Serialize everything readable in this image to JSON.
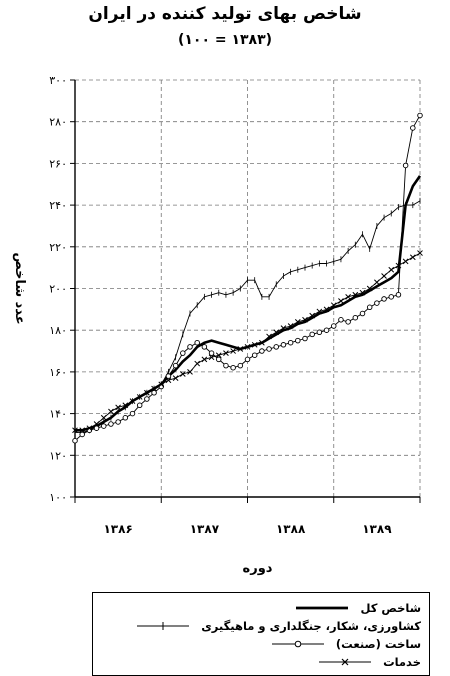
{
  "chart_data": {
    "type": "line",
    "title": "شاخص بهای تولید کننده در ایران",
    "subtitle": "(۱۰۰ = ۱۳۸۳)",
    "xlabel": "دوره",
    "ylabel": "عدد شاخص",
    "ylim": [
      100,
      300
    ],
    "y_ticks": [
      100,
      120,
      140,
      160,
      180,
      200,
      220,
      240,
      260,
      280,
      300
    ],
    "y_tick_labels": [
      "۱۰۰",
      "۱۲۰",
      "۱۴۰",
      "۱۶۰",
      "۱۸۰",
      "۲۰۰",
      "۲۲۰",
      "۲۴۰",
      "۲۶۰",
      "۲۸۰",
      "۳۰۰"
    ],
    "x_range": [
      0,
      48
    ],
    "x_tick_positions": [
      0,
      12,
      24,
      36,
      48
    ],
    "x_category_labels": [
      "۱۳۸۶",
      "۱۳۸۷",
      "۱۳۸۸",
      "۱۳۸۹"
    ],
    "grid": true,
    "legend_position": "bottom",
    "series": [
      {
        "name": "شاخص کل",
        "style": "thick",
        "color": "#000000",
        "x": [
          0,
          1,
          2,
          3,
          4,
          5,
          6,
          7,
          8,
          9,
          10,
          11,
          12,
          13,
          14,
          15,
          16,
          17,
          18,
          19,
          20,
          21,
          22,
          23,
          24,
          25,
          26,
          27,
          28,
          29,
          30,
          31,
          32,
          33,
          34,
          35,
          36,
          37,
          38,
          39,
          40,
          41,
          42,
          43,
          44,
          45,
          46,
          47,
          48
        ],
        "y": [
          132,
          132,
          133,
          134,
          136,
          138,
          141,
          143,
          146,
          148,
          150,
          152,
          154,
          158,
          161,
          165,
          168,
          172,
          174,
          175,
          174,
          173,
          172,
          171,
          172,
          173,
          174,
          176,
          178,
          180,
          181,
          183,
          184,
          186,
          188,
          189,
          191,
          192,
          194,
          196,
          197,
          199,
          201,
          203,
          205,
          208,
          240,
          249,
          254
        ]
      },
      {
        "name": "کشاورزی، شکار، جنگلداری و ماهیگیری",
        "style": "thin",
        "color": "#000000",
        "x": [
          0,
          1,
          2,
          3,
          4,
          5,
          6,
          7,
          8,
          9,
          10,
          11,
          12,
          13,
          14,
          15,
          16,
          17,
          18,
          19,
          20,
          21,
          22,
          23,
          24,
          25,
          26,
          27,
          28,
          29,
          30,
          31,
          32,
          33,
          34,
          35,
          36,
          37,
          38,
          39,
          40,
          41,
          42,
          43,
          44,
          45,
          46,
          47,
          48
        ],
        "y": [
          131,
          131,
          132,
          134,
          136,
          138,
          141,
          143,
          146,
          148,
          150,
          152,
          154,
          160,
          167,
          178,
          188,
          192,
          196,
          197,
          198,
          197,
          198,
          200,
          204,
          204,
          196,
          196,
          202,
          206,
          208,
          209,
          210,
          211,
          212,
          212,
          213,
          214,
          218,
          221,
          226,
          219,
          230,
          234,
          236,
          239,
          240,
          240,
          242
        ]
      },
      {
        "name": "ساخت (صنعت)",
        "style": "circle",
        "color": "#000000",
        "x": [
          0,
          1,
          2,
          3,
          4,
          5,
          6,
          7,
          8,
          9,
          10,
          11,
          12,
          13,
          14,
          15,
          16,
          17,
          18,
          19,
          20,
          21,
          22,
          23,
          24,
          25,
          26,
          27,
          28,
          29,
          30,
          31,
          32,
          33,
          34,
          35,
          36,
          37,
          38,
          39,
          40,
          41,
          42,
          43,
          44,
          45,
          46,
          47,
          48
        ],
        "y": [
          127,
          130,
          132,
          133,
          134,
          135,
          136,
          138,
          140,
          144,
          147,
          150,
          153,
          158,
          163,
          169,
          172,
          174,
          172,
          169,
          166,
          163,
          162,
          163,
          166,
          168,
          170,
          171,
          172,
          173,
          174,
          175,
          176,
          178,
          179,
          180,
          182,
          185,
          184,
          186,
          188,
          191,
          193,
          195,
          196,
          197,
          259,
          277,
          283
        ]
      },
      {
        "name": "خدمات",
        "style": "cross",
        "color": "#000000",
        "x": [
          0,
          1,
          2,
          3,
          4,
          5,
          6,
          7,
          8,
          9,
          10,
          11,
          12,
          13,
          14,
          15,
          16,
          17,
          18,
          19,
          20,
          21,
          22,
          23,
          24,
          25,
          26,
          27,
          28,
          29,
          30,
          31,
          32,
          33,
          34,
          35,
          36,
          37,
          38,
          39,
          40,
          41,
          42,
          43,
          44,
          45,
          46,
          47,
          48
        ],
        "y": [
          132,
          132,
          133,
          135,
          138,
          141,
          143,
          144,
          146,
          148,
          150,
          152,
          154,
          156,
          157,
          159,
          160,
          164,
          166,
          167,
          168,
          169,
          170,
          171,
          172,
          173,
          174,
          177,
          179,
          181,
          182,
          184,
          185,
          187,
          189,
          190,
          192,
          194,
          196,
          197,
          198,
          200,
          203,
          206,
          209,
          211,
          213,
          215,
          217
        ]
      }
    ]
  }
}
